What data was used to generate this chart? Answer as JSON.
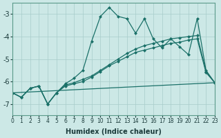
{
  "xlabel": "Humidex (Indice chaleur)",
  "background_color": "#cce8e6",
  "grid_color": "#a8ccca",
  "line_color": "#1a7068",
  "xlim": [
    0,
    23
  ],
  "ylim": [
    -7.5,
    -2.5
  ],
  "yticks": [
    -7,
    -6,
    -5,
    -4,
    -3
  ],
  "xticks": [
    0,
    1,
    2,
    3,
    4,
    5,
    6,
    7,
    8,
    9,
    10,
    11,
    12,
    13,
    14,
    15,
    16,
    17,
    18,
    19,
    20,
    21,
    22,
    23
  ],
  "line1_x": [
    0,
    1,
    2,
    3,
    4,
    5,
    6,
    7,
    8,
    9,
    10,
    11,
    12,
    13,
    14,
    15,
    16,
    17,
    18,
    19,
    20,
    21,
    22,
    23
  ],
  "line1_y": [
    -6.5,
    -6.7,
    -6.3,
    -6.2,
    -7.0,
    -6.5,
    -6.1,
    -5.85,
    -5.5,
    -4.2,
    -3.1,
    -2.7,
    -3.1,
    -3.2,
    -3.85,
    -3.2,
    -4.1,
    -4.5,
    -4.1,
    -4.45,
    -4.8,
    -3.2,
    -5.5,
    -6.05
  ],
  "line2_x": [
    0,
    1,
    2,
    3,
    4,
    5,
    6,
    7,
    8,
    9,
    10,
    11,
    12,
    13,
    14,
    15,
    16,
    17,
    18,
    19,
    20,
    21,
    22,
    23
  ],
  "line2_y": [
    -6.5,
    -6.7,
    -6.3,
    -6.2,
    -7.0,
    -6.5,
    -6.15,
    -6.05,
    -5.9,
    -5.75,
    -5.5,
    -5.25,
    -5.0,
    -4.75,
    -4.55,
    -4.4,
    -4.3,
    -4.2,
    -4.1,
    -4.05,
    -4.0,
    -3.95,
    -5.55,
    -6.05
  ],
  "line3_x": [
    0,
    1,
    2,
    3,
    4,
    5,
    6,
    7,
    8,
    9,
    10,
    11,
    12,
    13,
    14,
    15,
    16,
    17,
    18,
    19,
    20,
    21,
    22,
    23
  ],
  "line3_y": [
    -6.5,
    -6.7,
    -6.3,
    -6.2,
    -7.0,
    -6.5,
    -6.2,
    -6.1,
    -6.0,
    -5.8,
    -5.55,
    -5.3,
    -5.1,
    -4.9,
    -4.7,
    -4.6,
    -4.5,
    -4.4,
    -4.3,
    -4.25,
    -4.15,
    -4.1,
    -5.6,
    -6.05
  ],
  "line4_x": [
    0,
    23
  ],
  "line4_y": [
    -6.5,
    -6.05
  ]
}
